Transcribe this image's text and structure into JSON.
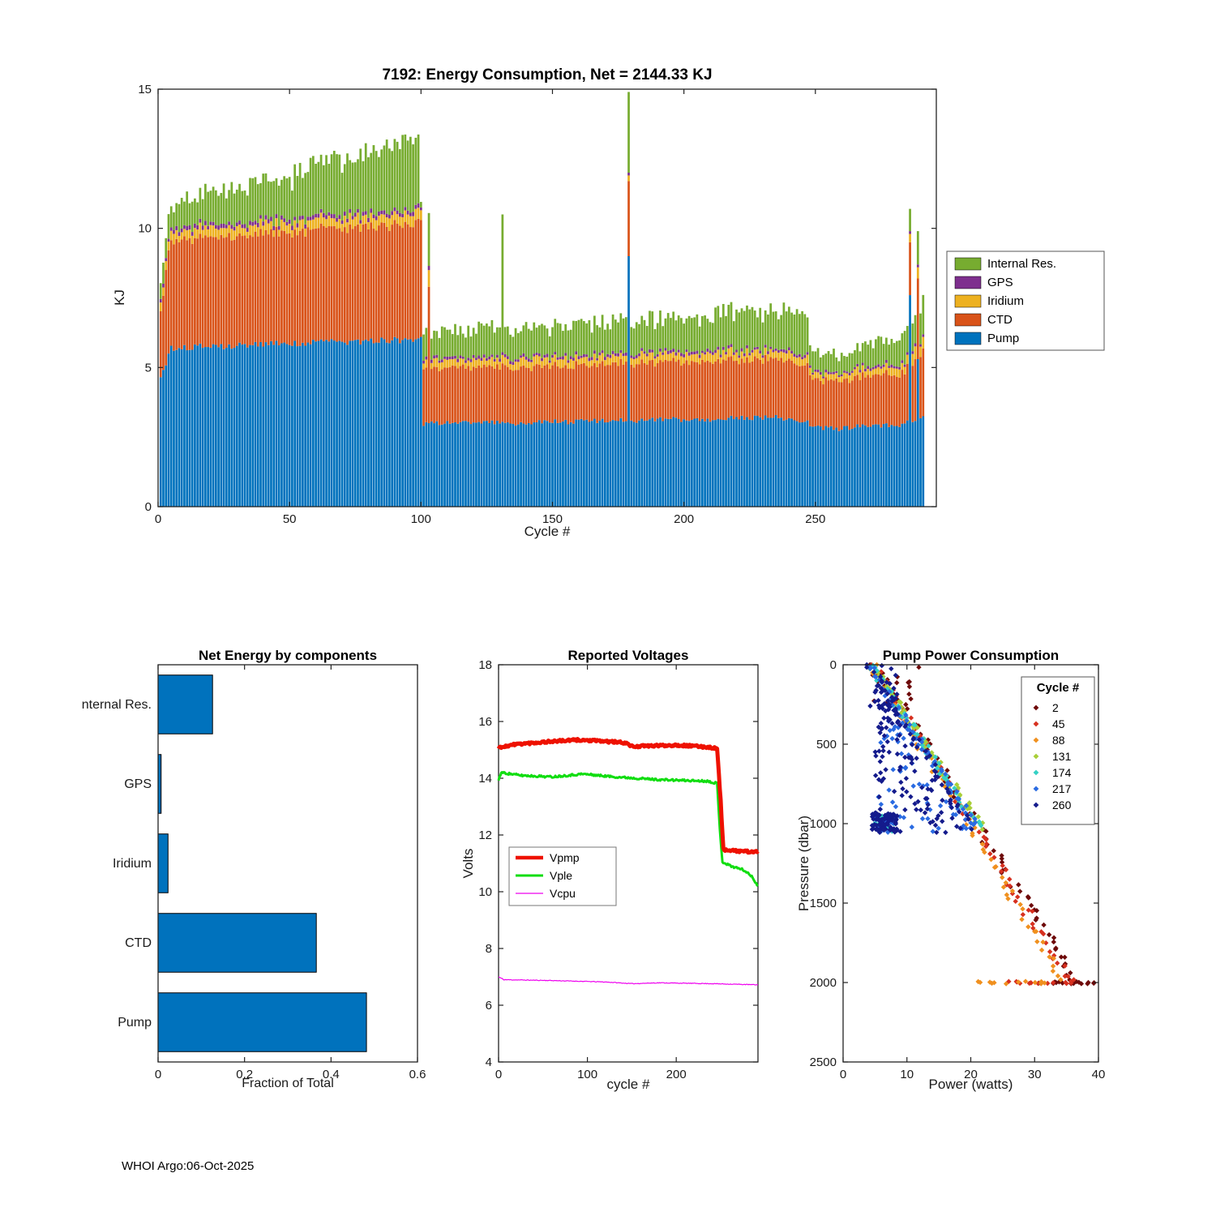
{
  "footer": {
    "text": "WHOI Argo:06-Oct-2025"
  },
  "chart_data": [
    {
      "type": "stacked-bar",
      "title": "7192: Energy Consumption,  Net = 2144.33 KJ",
      "xlabel": "Cycle #",
      "ylabel": "KJ",
      "xlim": [
        0,
        296
      ],
      "ylim": [
        0,
        15
      ],
      "xticks": [
        0,
        50,
        100,
        150,
        200,
        250
      ],
      "yticks": [
        0,
        5,
        10,
        15
      ],
      "legend": [
        "Internal Res.",
        "GPS",
        "Iridium",
        "CTD",
        "Pump"
      ],
      "colors": {
        "Pump": "#0072BD",
        "CTD": "#D95319",
        "Iridium": "#EDB120",
        "GPS": "#7E2F8E",
        "InternalRes": "#77AC30"
      },
      "stack_order": [
        "Pump",
        "CTD",
        "Iridium",
        "GPS",
        "InternalRes"
      ],
      "noise_seed": 42,
      "segments": [
        {
          "from": 1,
          "to": 4,
          "p": [
            4.6,
            5.5
          ],
          "c": [
            2.4,
            3.6
          ],
          "i": [
            0.28,
            0.3
          ],
          "g": [
            0.12,
            0.12
          ],
          "r": [
            0.7,
            0.9
          ],
          "j": [
            0.25,
            0.3,
            0.05,
            0.02,
            0.2
          ]
        },
        {
          "from": 5,
          "to": 45,
          "p": [
            5.7,
            5.85
          ],
          "c": [
            3.9,
            4.0
          ],
          "i": [
            0.32,
            0.32
          ],
          "g": [
            0.14,
            0.14
          ],
          "r": [
            0.9,
            1.5
          ],
          "j": [
            0.12,
            0.12,
            0.1,
            0.02,
            0.3
          ]
        },
        {
          "from": 46,
          "to": 97,
          "p": [
            5.85,
            6.0
          ],
          "c": [
            4.0,
            4.15
          ],
          "i": [
            0.33,
            0.35
          ],
          "g": [
            0.14,
            0.14
          ],
          "r": [
            1.5,
            2.6
          ],
          "j": [
            0.12,
            0.12,
            0.1,
            0.02,
            0.4
          ]
        },
        {
          "from": 98,
          "to": 99,
          "p": [
            6.0,
            6.05
          ],
          "c": [
            4.25,
            4.3
          ],
          "i": [
            0.4,
            0.4
          ],
          "g": [
            0.15,
            0.15
          ],
          "r": [
            2.4,
            2.55
          ],
          "j": [
            0.05,
            0.05,
            0.03,
            0.01,
            0.1
          ]
        },
        {
          "from": 100,
          "to": 100,
          "p": [
            6.1,
            6.1
          ],
          "c": [
            4.2,
            4.2
          ],
          "i": [
            0.35,
            0.35
          ],
          "g": [
            0.1,
            0.1
          ],
          "r": [
            0.2,
            0.2
          ],
          "j": [
            0,
            0,
            0,
            0,
            0
          ]
        },
        {
          "from": 101,
          "to": 130,
          "p": [
            3.0,
            3.0
          ],
          "c": [
            1.95,
            2.0
          ],
          "i": [
            0.27,
            0.27
          ],
          "g": [
            0.1,
            0.1
          ],
          "r": [
            0.95,
            1.05
          ],
          "j": [
            0.1,
            0.1,
            0.07,
            0.02,
            0.22
          ]
        },
        {
          "from": 132,
          "to": 178,
          "p": [
            3.0,
            3.1
          ],
          "c": [
            2.0,
            2.05
          ],
          "i": [
            0.27,
            0.27
          ],
          "g": [
            0.1,
            0.1
          ],
          "r": [
            1.0,
            1.15
          ],
          "j": [
            0.1,
            0.1,
            0.07,
            0.02,
            0.25
          ]
        },
        {
          "from": 180,
          "to": 237,
          "p": [
            3.1,
            3.2
          ],
          "c": [
            2.05,
            2.1
          ],
          "i": [
            0.27,
            0.28
          ],
          "g": [
            0.1,
            0.1
          ],
          "r": [
            1.15,
            1.35
          ],
          "j": [
            0.1,
            0.1,
            0.07,
            0.02,
            0.28
          ]
        },
        {
          "from": 238,
          "to": 247,
          "p": [
            3.15,
            3.1
          ],
          "c": [
            2.1,
            2.0
          ],
          "i": [
            0.3,
            0.28
          ],
          "g": [
            0.1,
            0.1
          ],
          "r": [
            1.6,
            1.4
          ],
          "j": [
            0.1,
            0.1,
            0.07,
            0.02,
            0.3
          ]
        },
        {
          "from": 248,
          "to": 262,
          "p": [
            2.85,
            2.8
          ],
          "c": [
            1.75,
            1.7
          ],
          "i": [
            0.22,
            0.22
          ],
          "g": [
            0.08,
            0.08
          ],
          "r": [
            0.6,
            0.7
          ],
          "j": [
            0.1,
            0.1,
            0.05,
            0.02,
            0.2
          ]
        },
        {
          "from": 263,
          "to": 283,
          "p": [
            2.85,
            2.95
          ],
          "c": [
            1.75,
            1.85
          ],
          "i": [
            0.25,
            0.25
          ],
          "g": [
            0.09,
            0.09
          ],
          "r": [
            0.75,
            0.95
          ],
          "j": [
            0.1,
            0.1,
            0.05,
            0.02,
            0.2
          ]
        },
        {
          "from": 284,
          "to": 291,
          "p": [
            3.0,
            3.3
          ],
          "c": [
            1.9,
            2.3
          ],
          "i": [
            0.3,
            0.45
          ],
          "g": [
            0.1,
            0.1
          ],
          "r": [
            1.0,
            1.3
          ],
          "j": [
            0.1,
            0.15,
            0.08,
            0.02,
            0.25
          ]
        }
      ],
      "spikes": [
        {
          "cycle": 103,
          "p": 3.0,
          "c": 4.9,
          "i": 0.6,
          "g": 0.15,
          "r": 1.9
        },
        {
          "cycle": 131,
          "p": 3.05,
          "c": 2.1,
          "i": 0.3,
          "g": 0.1,
          "r": 4.95
        },
        {
          "cycle": 179,
          "p": 9.0,
          "c": 2.7,
          "i": 0.2,
          "g": 0.1,
          "r": 2.9
        },
        {
          "cycle": 286,
          "p": 7.6,
          "c": 1.9,
          "i": 0.3,
          "g": 0.1,
          "r": 0.8
        },
        {
          "cycle": 289,
          "p": 5.3,
          "c": 2.9,
          "i": 0.4,
          "g": 0.1,
          "r": 1.2
        }
      ]
    },
    {
      "type": "bar-horizontal",
      "title": "Net Energy by components",
      "xlabel": "Fraction of Total",
      "categories": [
        "Internal Res.",
        "GPS",
        "Iridium",
        "CTD",
        "Pump"
      ],
      "values": [
        0.126,
        0.007,
        0.023,
        0.366,
        0.482
      ],
      "xlim": [
        0,
        0.6
      ],
      "xticks": [
        0,
        0.2,
        0.4,
        0.6
      ],
      "bar_color": "#0072BD"
    },
    {
      "type": "line",
      "title": "Reported Voltages",
      "xlabel": "cycle #",
      "ylabel": "Volts",
      "xlim": [
        0,
        292
      ],
      "ylim": [
        4,
        18
      ],
      "xticks": [
        0,
        100,
        200
      ],
      "yticks": [
        4,
        6,
        8,
        10,
        12,
        14,
        16,
        18
      ],
      "noise_seed": 11,
      "legend_order": [
        "Vpmp",
        "Vple",
        "Vcpu"
      ],
      "series": [
        {
          "name": "Vpmp",
          "color": "#EE1100",
          "width": 5,
          "jit": 0.04,
          "points": [
            [
              0,
              15.05
            ],
            [
              3,
              15.1
            ],
            [
              20,
              15.2
            ],
            [
              60,
              15.3
            ],
            [
              90,
              15.35
            ],
            [
              120,
              15.3
            ],
            [
              143,
              15.25
            ],
            [
              150,
              15.12
            ],
            [
              200,
              15.17
            ],
            [
              235,
              15.1
            ],
            [
              246,
              15.05
            ],
            [
              250,
              13.2
            ],
            [
              253,
              11.5
            ],
            [
              258,
              11.45
            ],
            [
              292,
              11.4
            ]
          ]
        },
        {
          "name": "Vple",
          "color": "#11DD11",
          "width": 3,
          "jit": 0.035,
          "points": [
            [
              0,
              13.95
            ],
            [
              3,
              14.2
            ],
            [
              25,
              14.1
            ],
            [
              60,
              14.05
            ],
            [
              95,
              14.15
            ],
            [
              130,
              14.05
            ],
            [
              180,
              13.95
            ],
            [
              235,
              13.9
            ],
            [
              246,
              13.82
            ],
            [
              249,
              12.2
            ],
            [
              252,
              11.05
            ],
            [
              262,
              10.9
            ],
            [
              275,
              10.78
            ],
            [
              285,
              10.55
            ],
            [
              292,
              10.2
            ]
          ]
        },
        {
          "name": "Vcpu",
          "color": "#EE00EE",
          "width": 1.2,
          "jit": 0.012,
          "points": [
            [
              0,
              7.0
            ],
            [
              6,
              6.9
            ],
            [
              60,
              6.87
            ],
            [
              120,
              6.82
            ],
            [
              150,
              6.76
            ],
            [
              180,
              6.79
            ],
            [
              240,
              6.76
            ],
            [
              292,
              6.72
            ]
          ]
        }
      ]
    },
    {
      "type": "scatter",
      "title": "Pump Power Consumption",
      "xlabel": "Power (watts)",
      "ylabel": "Pressure (dbar)",
      "xlim": [
        0,
        40
      ],
      "ylim": [
        0,
        2500
      ],
      "y_reversed": true,
      "xticks": [
        0,
        10,
        20,
        30,
        40
      ],
      "yticks": [
        0,
        500,
        1000,
        1500,
        2000,
        2500
      ],
      "legend_title": "Cycle #",
      "noise_seed": 7,
      "groups": [
        {
          "label": "2",
          "color": "#6E0A0A",
          "band": {
            "maxP": 2000,
            "n": 70,
            "base": 5.0,
            "slope": 0.0158,
            "pj": 25,
            "wj": 0.9
          },
          "extras": [
            {
              "type": "box",
              "p0": 0,
              "p1": 260,
              "w0": 4.0,
              "w1": 12.0,
              "n": 18
            },
            {
              "type": "row",
              "p": 2000,
              "w0": 30,
              "w1": 40,
              "n": 16
            }
          ]
        },
        {
          "label": "45",
          "color": "#D7301F",
          "band": {
            "maxP": 2000,
            "n": 65,
            "base": 4.7,
            "slope": 0.0155,
            "pj": 25,
            "wj": 0.9
          },
          "extras": [
            {
              "type": "row",
              "p": 2000,
              "w0": 25,
              "w1": 37,
              "n": 14
            }
          ]
        },
        {
          "label": "88",
          "color": "#F0901E",
          "band": {
            "maxP": 2000,
            "n": 60,
            "base": 4.5,
            "slope": 0.015,
            "pj": 25,
            "wj": 0.8
          },
          "extras": [
            {
              "type": "row",
              "p": 2000,
              "w0": 18,
              "w1": 32,
              "n": 14
            }
          ]
        },
        {
          "label": "131",
          "color": "#A9CF38",
          "band": {
            "maxP": 1020,
            "n": 55,
            "base": 4.4,
            "slope": 0.017,
            "pj": 20,
            "wj": 0.7
          },
          "extras": []
        },
        {
          "label": "174",
          "color": "#35D1C5",
          "band": {
            "maxP": 1020,
            "n": 55,
            "base": 4.2,
            "slope": 0.0168,
            "pj": 20,
            "wj": 0.7
          },
          "extras": [
            {
              "type": "box",
              "p0": 950,
              "p1": 1050,
              "w0": 5.0,
              "w1": 8.0,
              "n": 20
            }
          ]
        },
        {
          "label": "217",
          "color": "#2A6BE2",
          "band": {
            "maxP": 1020,
            "n": 50,
            "base": 4.0,
            "slope": 0.0165,
            "pj": 20,
            "wj": 0.7
          },
          "extras": [
            {
              "type": "tri",
              "p0": 350,
              "p1": 1050,
              "wmin": 5.5,
              "n": 55
            },
            {
              "type": "box",
              "p0": 950,
              "p1": 1060,
              "w0": 4.8,
              "w1": 8.0,
              "n": 30
            }
          ]
        },
        {
          "label": "260",
          "color": "#141B8C",
          "band": {
            "maxP": 1020,
            "n": 35,
            "base": 3.8,
            "slope": 0.016,
            "pj": 20,
            "wj": 0.7
          },
          "extras": [
            {
              "type": "tri",
              "p0": 250,
              "p1": 1060,
              "wmin": 5.0,
              "n": 110
            },
            {
              "type": "box",
              "p0": 930,
              "p1": 1060,
              "w0": 4.5,
              "w1": 8.5,
              "n": 70
            },
            {
              "type": "box",
              "p0": 0,
              "p1": 300,
              "w0": 4.0,
              "w1": 9.0,
              "n": 25
            }
          ]
        }
      ]
    }
  ]
}
